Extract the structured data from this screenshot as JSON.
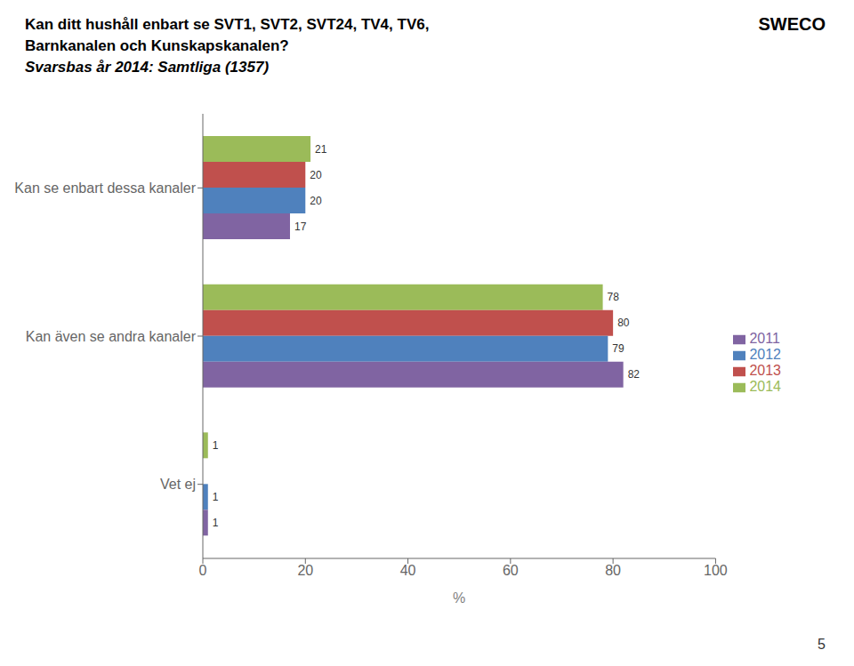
{
  "chart_data": {
    "type": "bar",
    "orientation": "horizontal",
    "title": "Kan ditt hushåll enbart se SVT1, SVT2, SVT24, TV4, TV6,\nBarnkanalen och Kunskapskanalen?",
    "subtitle": "Svarsbas år 2014: Samtliga (1357)",
    "annotations": [
      "SWECO",
      "5"
    ],
    "categories": [
      "Kan se enbart dessa kanaler",
      "Kan även se andra kanaler",
      "Vet ej"
    ],
    "series": [
      {
        "name": "2014",
        "color": "#9bbb59",
        "values": [
          21,
          78,
          1
        ]
      },
      {
        "name": "2013",
        "color": "#c0504d",
        "values": [
          20,
          80,
          0
        ]
      },
      {
        "name": "2012",
        "color": "#4f81bd",
        "values": [
          20,
          79,
          1
        ]
      },
      {
        "name": "2011",
        "color": "#8064a2",
        "values": [
          17,
          82,
          1
        ]
      }
    ],
    "xlabel": "%",
    "xlim": [
      0,
      100
    ],
    "xticks": [
      0,
      20,
      40,
      60,
      80,
      100
    ],
    "data_labels": true,
    "grid": false,
    "legend": "right"
  }
}
